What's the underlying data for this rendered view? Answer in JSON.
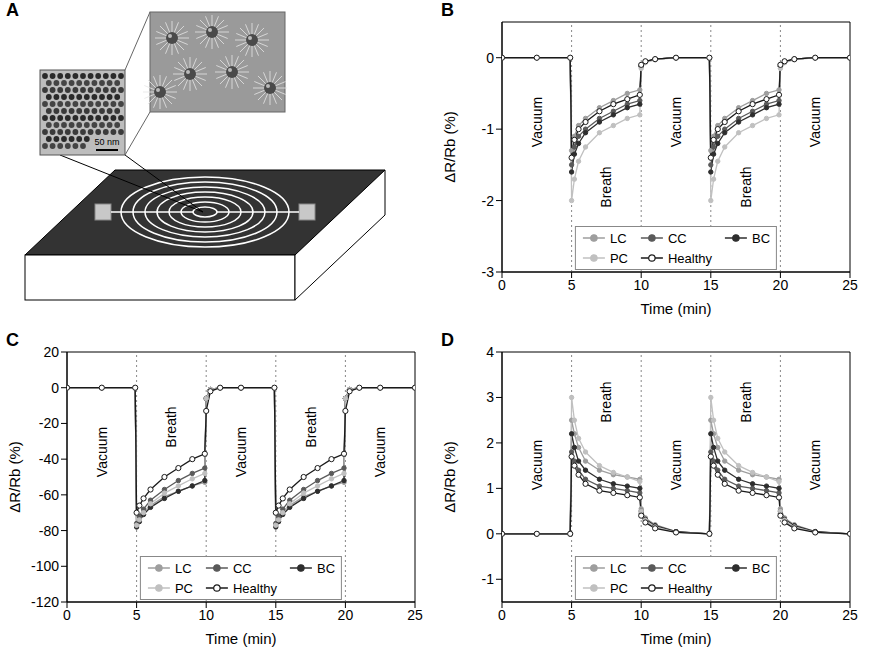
{
  "diagram": {
    "panel": "A",
    "scale_bar": "50 nm"
  },
  "chart_data": [
    {
      "panel": "B",
      "type": "line",
      "xlabel": "Time (min)",
      "ylabel": "ΔR/Rb (%)",
      "xlim": [
        0,
        25
      ],
      "ylim": [
        -3,
        0.5
      ],
      "xticks": [
        0,
        5,
        10,
        15,
        20,
        25
      ],
      "yticks": [
        -3,
        -2,
        -1,
        0
      ],
      "grid": false,
      "legend": "lower center",
      "phases": [
        {
          "label": "Vacuum",
          "start": 0,
          "end": 5
        },
        {
          "label": "Breath",
          "start": 5,
          "end": 10
        },
        {
          "label": "Vacuum",
          "start": 10,
          "end": 15
        },
        {
          "label": "Breath",
          "start": 15,
          "end": 20
        },
        {
          "label": "Vacuum",
          "start": 20,
          "end": 25
        }
      ],
      "x": [
        0,
        2.5,
        4.9,
        5,
        5.2,
        5.5,
        6,
        7,
        8,
        9,
        9.9,
        10,
        10.3,
        11,
        12.5,
        14.9,
        15,
        15.2,
        15.5,
        16,
        17,
        18,
        19,
        19.9,
        20,
        20.3,
        21,
        22.5,
        25
      ],
      "series": [
        {
          "name": "LC",
          "color": "#9e9e9e",
          "marker": "circle",
          "values": [
            0,
            0,
            0,
            -1.3,
            -1.1,
            -0.95,
            -0.85,
            -0.7,
            -0.6,
            -0.5,
            -0.45,
            -0.1,
            -0.05,
            -0.02,
            0,
            0,
            -1.3,
            -1.1,
            -0.95,
            -0.85,
            -0.7,
            -0.6,
            -0.5,
            -0.45,
            -0.1,
            -0.05,
            -0.02,
            0,
            0
          ]
        },
        {
          "name": "CC",
          "color": "#5a5a5a",
          "marker": "circle",
          "values": [
            0,
            0,
            0,
            -1.5,
            -1.25,
            -1.1,
            -1.0,
            -0.85,
            -0.75,
            -0.65,
            -0.6,
            -0.12,
            -0.06,
            -0.02,
            0,
            0,
            -1.5,
            -1.25,
            -1.1,
            -1.0,
            -0.85,
            -0.75,
            -0.65,
            -0.6,
            -0.12,
            -0.06,
            -0.02,
            0,
            0
          ]
        },
        {
          "name": "BC",
          "color": "#2e2e2e",
          "marker": "circle",
          "values": [
            0,
            0,
            0,
            -1.6,
            -1.35,
            -1.2,
            -1.05,
            -0.9,
            -0.8,
            -0.7,
            -0.65,
            -0.12,
            -0.06,
            -0.02,
            0,
            0,
            -1.6,
            -1.35,
            -1.2,
            -1.05,
            -0.9,
            -0.8,
            -0.7,
            -0.65,
            -0.12,
            -0.06,
            -0.02,
            0,
            0
          ]
        },
        {
          "name": "PC",
          "color": "#c0c0c0",
          "marker": "circle",
          "values": [
            0,
            0,
            0,
            -2.0,
            -1.7,
            -1.45,
            -1.25,
            -1.05,
            -0.95,
            -0.85,
            -0.8,
            -0.15,
            -0.07,
            -0.03,
            0,
            0,
            -2.0,
            -1.7,
            -1.45,
            -1.25,
            -1.05,
            -0.95,
            -0.85,
            -0.8,
            -0.15,
            -0.07,
            -0.03,
            0,
            0
          ]
        },
        {
          "name": "Healthy",
          "color": "#1a1a1a",
          "marker": "open_circle",
          "values": [
            0,
            0,
            0,
            -1.4,
            -1.15,
            -1.0,
            -0.9,
            -0.75,
            -0.65,
            -0.58,
            -0.52,
            -0.1,
            -0.05,
            -0.02,
            0,
            0,
            -1.4,
            -1.15,
            -1.0,
            -0.9,
            -0.75,
            -0.65,
            -0.58,
            -0.52,
            -0.1,
            -0.05,
            -0.02,
            0,
            0
          ]
        }
      ]
    },
    {
      "panel": "C",
      "type": "line",
      "xlabel": "Time (min)",
      "ylabel": "ΔR/Rb (%)",
      "xlim": [
        0,
        25
      ],
      "ylim": [
        -120,
        20
      ],
      "xticks": [
        0,
        5,
        10,
        15,
        20,
        25
      ],
      "yticks": [
        -120,
        -100,
        -80,
        -60,
        -40,
        -20,
        0,
        20
      ],
      "grid": false,
      "legend": "lower center",
      "phases": [
        {
          "label": "Vacuum",
          "start": 0,
          "end": 5
        },
        {
          "label": "Breath",
          "start": 5,
          "end": 10
        },
        {
          "label": "Vacuum",
          "start": 10,
          "end": 15
        },
        {
          "label": "Breath",
          "start": 15,
          "end": 20
        },
        {
          "label": "Vacuum",
          "start": 20,
          "end": 25
        }
      ],
      "x": [
        0,
        2.5,
        4.9,
        5,
        5.2,
        5.5,
        6,
        7,
        8,
        9,
        9.9,
        10,
        10.3,
        11,
        12.5,
        14.9,
        15,
        15.2,
        15.5,
        16,
        17,
        18,
        19,
        19.9,
        20,
        20.3,
        21,
        22.5,
        25
      ],
      "series": [
        {
          "name": "LC",
          "color": "#9e9e9e",
          "marker": "circle",
          "values": [
            0,
            0,
            0,
            -77,
            -74,
            -70,
            -66,
            -61,
            -58,
            -55,
            -53,
            -6,
            -1,
            0,
            0,
            0,
            -77,
            -74,
            -70,
            -66,
            -61,
            -58,
            -55,
            -53,
            -6,
            -1,
            0,
            0,
            0
          ]
        },
        {
          "name": "CC",
          "color": "#5a5a5a",
          "marker": "circle",
          "values": [
            0,
            0,
            0,
            -76,
            -72,
            -68,
            -63,
            -57,
            -52,
            -48,
            -45,
            -6,
            -1,
            0,
            0,
            0,
            -76,
            -72,
            -68,
            -63,
            -57,
            -52,
            -48,
            -45,
            -6,
            -1,
            0,
            0,
            0
          ]
        },
        {
          "name": "BC",
          "color": "#2e2e2e",
          "marker": "circle",
          "values": [
            0,
            0,
            0,
            -78,
            -75,
            -71,
            -67,
            -62,
            -58,
            -55,
            -52,
            -6,
            -1,
            0,
            0,
            0,
            -78,
            -75,
            -71,
            -67,
            -62,
            -58,
            -55,
            -52,
            -6,
            -1,
            0,
            0,
            0
          ]
        },
        {
          "name": "PC",
          "color": "#c0c0c0",
          "marker": "circle",
          "values": [
            0,
            0,
            0,
            -77,
            -74,
            -70,
            -65,
            -59,
            -55,
            -51,
            -48,
            -6,
            -1,
            0,
            0,
            0,
            -77,
            -74,
            -70,
            -65,
            -59,
            -55,
            -51,
            -48,
            -6,
            -1,
            0,
            0,
            0
          ]
        },
        {
          "name": "Healthy",
          "color": "#1a1a1a",
          "marker": "open_circle",
          "values": [
            0,
            0,
            0,
            -70,
            -66,
            -62,
            -57,
            -50,
            -45,
            -40,
            -37,
            -13,
            -2,
            0,
            0,
            0,
            -70,
            -66,
            -62,
            -57,
            -50,
            -45,
            -40,
            -37,
            -13,
            -2,
            0,
            0,
            0
          ]
        }
      ]
    },
    {
      "panel": "D",
      "type": "line",
      "xlabel": "Time (min)",
      "ylabel": "ΔR/Rb (%)",
      "xlim": [
        0,
        25
      ],
      "ylim": [
        -1.5,
        4
      ],
      "xticks": [
        0,
        5,
        10,
        15,
        20,
        25
      ],
      "yticks": [
        -1,
        0,
        1,
        2,
        3,
        4
      ],
      "grid": false,
      "legend": "lower center",
      "phases": [
        {
          "label": "Vacuum",
          "start": 0,
          "end": 5
        },
        {
          "label": "Breath",
          "start": 5,
          "end": 10
        },
        {
          "label": "Vacuum",
          "start": 10,
          "end": 15
        },
        {
          "label": "Breath",
          "start": 15,
          "end": 20
        },
        {
          "label": "Vacuum",
          "start": 20,
          "end": 25
        }
      ],
      "x": [
        0,
        2.5,
        4.9,
        5,
        5.2,
        5.5,
        6,
        7,
        8,
        9,
        9.9,
        10,
        10.3,
        11,
        12.5,
        14.9,
        15,
        15.2,
        15.5,
        16,
        17,
        18,
        19,
        19.9,
        20,
        20.3,
        21,
        22.5,
        25
      ],
      "series": [
        {
          "name": "LC",
          "color": "#9e9e9e",
          "marker": "circle",
          "values": [
            0,
            0,
            0,
            2.5,
            2.2,
            1.9,
            1.6,
            1.4,
            1.3,
            1.25,
            1.2,
            0.55,
            0.35,
            0.2,
            0.05,
            0,
            2.5,
            2.2,
            1.9,
            1.6,
            1.4,
            1.3,
            1.25,
            1.2,
            0.55,
            0.35,
            0.2,
            0.05,
            0
          ]
        },
        {
          "name": "CC",
          "color": "#5a5a5a",
          "marker": "circle",
          "values": [
            0,
            0,
            0,
            1.8,
            1.6,
            1.4,
            1.2,
            1.05,
            1.0,
            0.95,
            0.9,
            0.45,
            0.3,
            0.15,
            0.04,
            0,
            1.8,
            1.6,
            1.4,
            1.2,
            1.05,
            1.0,
            0.95,
            0.9,
            0.45,
            0.3,
            0.15,
            0.04,
            0
          ]
        },
        {
          "name": "BC",
          "color": "#2e2e2e",
          "marker": "circle",
          "values": [
            0,
            0,
            0,
            2.2,
            1.9,
            1.6,
            1.4,
            1.2,
            1.1,
            1.05,
            1.0,
            0.5,
            0.32,
            0.18,
            0.05,
            0,
            2.2,
            1.9,
            1.6,
            1.4,
            1.2,
            1.1,
            1.05,
            1.0,
            0.5,
            0.32,
            0.18,
            0.05,
            0
          ]
        },
        {
          "name": "PC",
          "color": "#c0c0c0",
          "marker": "circle",
          "values": [
            0,
            0,
            0,
            3.0,
            2.5,
            2.1,
            1.8,
            1.5,
            1.35,
            1.25,
            1.15,
            0.5,
            0.3,
            0.15,
            0.03,
            0,
            3.0,
            2.5,
            2.1,
            1.8,
            1.5,
            1.35,
            1.25,
            1.15,
            0.5,
            0.3,
            0.15,
            0.03,
            0
          ]
        },
        {
          "name": "Healthy",
          "color": "#1a1a1a",
          "marker": "open_circle",
          "values": [
            0,
            0,
            0,
            1.7,
            1.5,
            1.3,
            1.1,
            0.95,
            0.9,
            0.85,
            0.8,
            0.4,
            0.25,
            0.12,
            0.03,
            0,
            1.7,
            1.5,
            1.3,
            1.1,
            0.95,
            0.9,
            0.85,
            0.8,
            0.4,
            0.25,
            0.12,
            0.03,
            0
          ]
        }
      ]
    }
  ]
}
